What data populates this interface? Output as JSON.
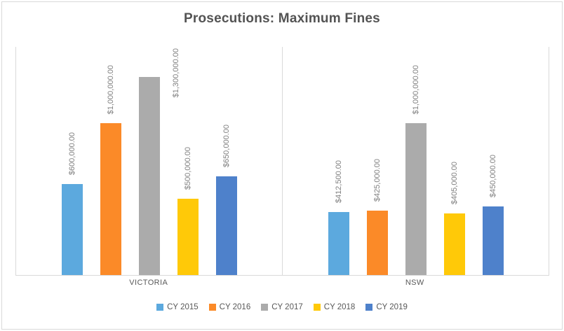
{
  "chart_data": {
    "type": "bar",
    "title": "Prosecutions: Maximum Fines",
    "categories": [
      "VICTORIA",
      "NSW"
    ],
    "series": [
      {
        "name": "CY 2015",
        "color": "#5CA9DE",
        "values": [
          600000,
          412500
        ],
        "labels": [
          "$600,000.00",
          "$412,500.00"
        ]
      },
      {
        "name": "CY 2016",
        "color": "#FB8A28",
        "values": [
          1000000,
          425000
        ],
        "labels": [
          "$1,000,000.00",
          "$425,000.00"
        ]
      },
      {
        "name": "CY 2017",
        "color": "#ABABAB",
        "values": [
          1300000,
          1000000
        ],
        "labels": [
          "$1,300,000.00",
          "$1,000,000.00"
        ]
      },
      {
        "name": "CY 2018",
        "color": "#FFC908",
        "values": [
          500000,
          405000
        ],
        "labels": [
          "$500,000.00",
          "$405,000.00"
        ]
      },
      {
        "name": "CY 2019",
        "color": "#4E81CB",
        "values": [
          650000,
          450000
        ],
        "labels": [
          "$650,000.00",
          "$450,000.00"
        ]
      }
    ],
    "xlabel": "",
    "ylabel": "",
    "ylim": [
      0,
      1500000
    ],
    "value_axis_visible": false,
    "gridlines": false,
    "legend_position": "bottom",
    "data_labels": "currency, rotated vertical, outside end",
    "line_color": "#D9D9D9"
  }
}
